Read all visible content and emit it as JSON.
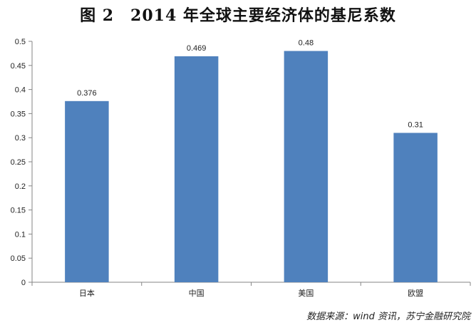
{
  "title": "图 2　2014 年全球主要经济体的基尼系数",
  "source": "数据来源：wind 资讯，苏宁金融研究院",
  "chart_data": {
    "type": "bar",
    "categories": [
      "日本",
      "中国",
      "美国",
      "欧盟"
    ],
    "values": [
      0.376,
      0.469,
      0.48,
      0.31
    ],
    "value_labels": [
      "0.376",
      "0.469",
      "0.48",
      "0.31"
    ],
    "ylim": [
      0,
      0.5
    ],
    "yticks": [
      0,
      0.05,
      0.1,
      0.15,
      0.2,
      0.25,
      0.3,
      0.35,
      0.4,
      0.45,
      0.5
    ],
    "ytick_labels": [
      "0",
      "0.05",
      "0.1",
      "0.15",
      "0.2",
      "0.25",
      "0.3",
      "0.35",
      "0.4",
      "0.45",
      "0.5"
    ],
    "bar_color": "#4F81BD",
    "grid": false,
    "legend": "none"
  }
}
